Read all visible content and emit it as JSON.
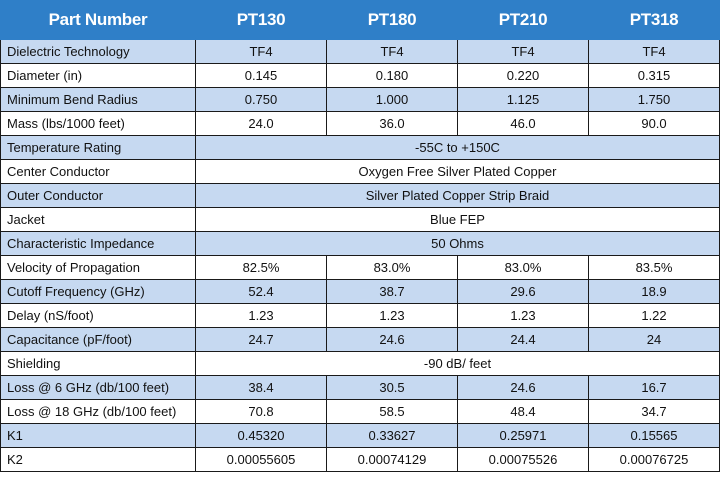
{
  "header": {
    "label": "Part Number",
    "parts": [
      "PT130",
      "PT180",
      "PT210",
      "PT318"
    ]
  },
  "rows": [
    {
      "label": "Dielectric Technology",
      "values": [
        "TF4",
        "TF4",
        "TF4",
        "TF4"
      ],
      "shaded": true
    },
    {
      "label": "Diameter (in)",
      "values": [
        "0.145",
        "0.180",
        "0.220",
        "0.315"
      ],
      "shaded": false
    },
    {
      "label": "Minimum Bend Radius",
      "values": [
        "0.750",
        "1.000",
        "1.125",
        "1.750"
      ],
      "shaded": true
    },
    {
      "label": "Mass (lbs/1000 feet)",
      "values": [
        "24.0",
        "36.0",
        "46.0",
        "90.0"
      ],
      "shaded": false
    },
    {
      "label": "Temperature Rating",
      "span": "-55C to +150C",
      "shaded": true
    },
    {
      "label": "Center Conductor",
      "span": "Oxygen Free Silver Plated Copper",
      "shaded": false
    },
    {
      "label": "Outer Conductor",
      "span": "Silver Plated Copper Strip Braid",
      "shaded": true
    },
    {
      "label": "Jacket",
      "span": "Blue FEP",
      "shaded": false
    },
    {
      "label": "Characteristic Impedance",
      "span": "50 Ohms",
      "shaded": true
    },
    {
      "label": "Velocity of Propagation",
      "values": [
        "82.5%",
        "83.0%",
        "83.0%",
        "83.5%"
      ],
      "shaded": false
    },
    {
      "label": "Cutoff Frequency (GHz)",
      "values": [
        "52.4",
        "38.7",
        "29.6",
        "18.9"
      ],
      "shaded": true
    },
    {
      "label": "Delay (nS/foot)",
      "values": [
        "1.23",
        "1.23",
        "1.23",
        "1.22"
      ],
      "shaded": false
    },
    {
      "label": "Capacitance (pF/foot)",
      "values": [
        "24.7",
        "24.6",
        "24.4",
        "24"
      ],
      "shaded": true
    },
    {
      "label": "Shielding",
      "span": "-90 dB/ feet",
      "shaded": false
    },
    {
      "label": "Loss @ 6 GHz (db/100 feet)",
      "values": [
        "38.4",
        "30.5",
        "24.6",
        "16.7"
      ],
      "shaded": true
    },
    {
      "label": "Loss @ 18 GHz (db/100 feet)",
      "values": [
        "70.8",
        "58.5",
        "48.4",
        "34.7"
      ],
      "shaded": false
    },
    {
      "label": "K1",
      "values": [
        "0.45320",
        "0.33627",
        "0.25971",
        "0.15565"
      ],
      "shaded": true
    },
    {
      "label": "K2",
      "values": [
        "0.00055605",
        "0.00074129",
        "0.00075526",
        "0.00076725"
      ],
      "shaded": false
    }
  ],
  "colors": {
    "header_bg": "#2f7fc8",
    "row_shade": "#c6d9f1",
    "row_plain": "#ffffff"
  }
}
